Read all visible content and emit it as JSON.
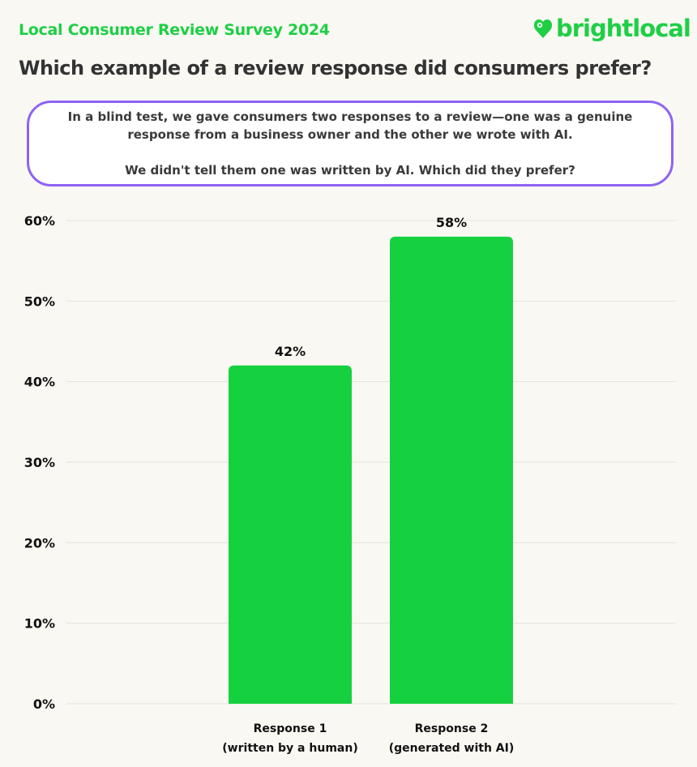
{
  "header": {
    "survey_label": "Local Consumer Review Survey 2024",
    "logo_text": "brightlocal",
    "title": "Which example of a review response did consumers prefer?"
  },
  "note": {
    "line1": "In a blind test, we gave consumers two responses to a review—one was a genuine",
    "line2": "response from a business owner and the other we wrote with AI.",
    "line3": "We didn't tell them one was written by AI. Which did they prefer?"
  },
  "colors": {
    "brand": "#1ecf45",
    "bar": "#16d13f",
    "note_border": "#8f63f2",
    "background": "#faf8f3"
  },
  "chart_data": {
    "type": "bar",
    "categories": [
      [
        "Response 1",
        "(written by a human)"
      ],
      [
        "Response 2",
        "(generated with AI)"
      ]
    ],
    "values": [
      42,
      58
    ],
    "data_labels": [
      "42%",
      "58%"
    ],
    "yticks": [
      "0%",
      "10%",
      "20%",
      "30%",
      "40%",
      "50%",
      "60%"
    ],
    "ylim": [
      0,
      60
    ],
    "grid": true
  }
}
